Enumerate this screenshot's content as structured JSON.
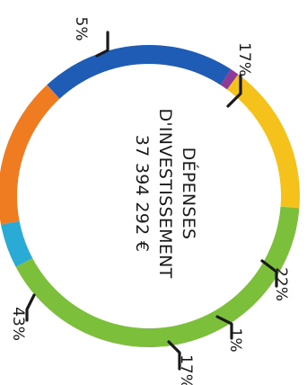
{
  "chart_data": {
    "type": "pie",
    "style": "donut",
    "title_lines": [
      "DÉPENSES",
      "D'INVESTISSEMENT",
      "37 394 292 €"
    ],
    "slices": [
      {
        "label": "5%",
        "value": 5,
        "color": "#29abd6"
      },
      {
        "label": "17%",
        "value": 17,
        "color": "#f07c22"
      },
      {
        "label": "22%",
        "value": 22,
        "color": "#1f5cb5"
      },
      {
        "label": "1%",
        "value": 1,
        "color": "#8e3b97"
      },
      {
        "label": "17%",
        "value": 17,
        "color": "#f5c21b"
      },
      {
        "label": "43%",
        "value": 43,
        "color": "#7cbf3a"
      }
    ]
  }
}
